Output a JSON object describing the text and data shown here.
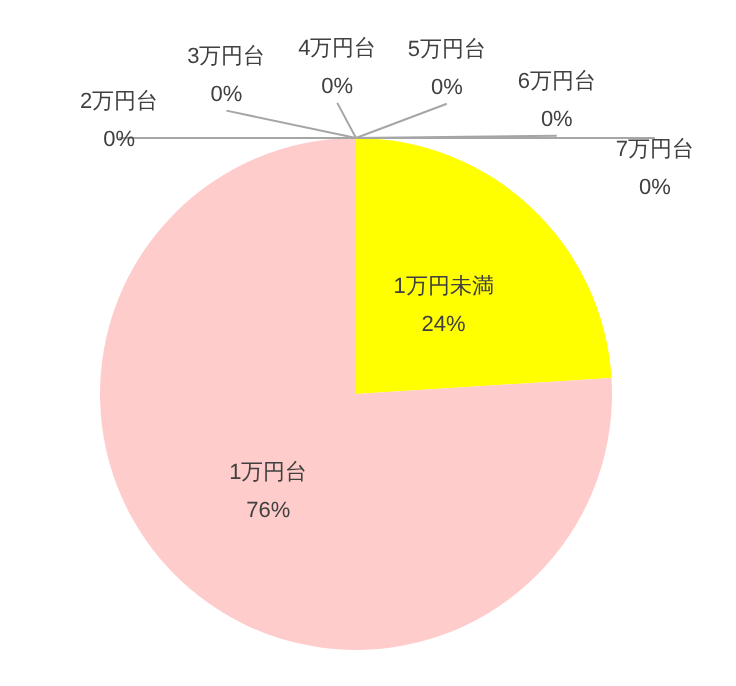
{
  "chart_data": {
    "type": "pie",
    "categories": [
      "1万円未満",
      "1万円台",
      "2万円台",
      "3万円台",
      "4万円台",
      "5万円台",
      "6万円台",
      "7万円台"
    ],
    "values": [
      24,
      76,
      0,
      0,
      0,
      0,
      0,
      0
    ],
    "colors": [
      "#ffff00",
      "#ffcccc",
      "#a5a5a5",
      "#ffc000",
      "#5b9bd5",
      "#70ad47",
      "#264478",
      "#9e480e"
    ],
    "value_labels": [
      "24%",
      "76%",
      "0%",
      "0%",
      "0%",
      "0%",
      "0%",
      "0%"
    ],
    "legend": false
  }
}
